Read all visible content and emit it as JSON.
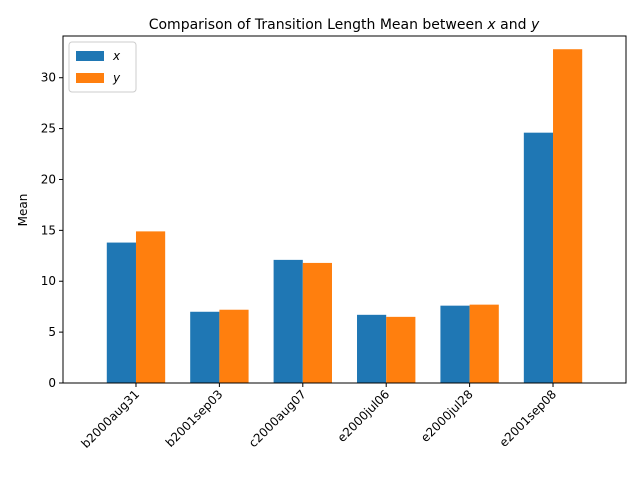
{
  "chart_data": {
    "type": "bar",
    "title": "Comparison of Transition Length Mean between x and y",
    "xlabel": "",
    "ylabel": "Mean",
    "categories": [
      "b2000aug31",
      "b2001sep03",
      "c2000aug07",
      "e2000jul06",
      "e2000jul28",
      "e2001sep08"
    ],
    "series": [
      {
        "name": "x",
        "color": "#1f77b4",
        "values": [
          13.8,
          7.0,
          12.1,
          6.7,
          7.6,
          24.6
        ]
      },
      {
        "name": "y",
        "color": "#ff7f0e",
        "values": [
          14.9,
          7.2,
          11.8,
          6.5,
          7.7,
          32.8
        ]
      }
    ],
    "ylim": [
      0,
      34.1
    ],
    "yticks": [
      0,
      5,
      10,
      15,
      20,
      25,
      30
    ],
    "grid": false,
    "legend": "top-left"
  }
}
